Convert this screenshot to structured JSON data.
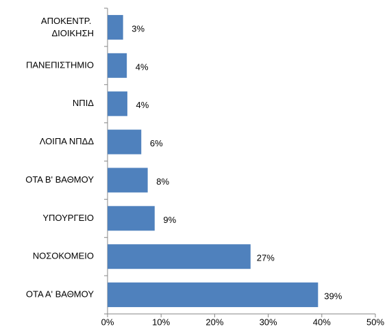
{
  "chart_data": {
    "type": "bar",
    "orientation": "horizontal",
    "categories": [
      "ΑΠΟΚΕΝΤΡ. ΔΙΟΙΚΗΣΗ",
      "ΠΑΝΕΠΙΣΤΗΜΙΟ",
      "ΝΠΙΔ",
      "ΛΟΙΠΑ ΝΠΔΔ",
      "ΟΤΑ Β' ΒΑΘΜΟΥ",
      "ΥΠΟΥΡΓΕΙΟ",
      "ΝΟΣΟΚΟΜΕΙΟ",
      "ΟΤΑ Α' ΒΑΘΜΟΥ"
    ],
    "values": [
      2.9,
      3.6,
      3.7,
      6.3,
      7.5,
      8.8,
      26.7,
      39.3
    ],
    "value_labels": [
      "3%",
      "4%",
      "4%",
      "6%",
      "8%",
      "9%",
      "27%",
      "39%"
    ],
    "color": "#4f81bd",
    "xlim": [
      0,
      50
    ],
    "xticks": [
      {
        "value": 0,
        "label": "0%"
      },
      {
        "value": 10,
        "label": "10%"
      },
      {
        "value": 20,
        "label": "20%"
      },
      {
        "value": 30,
        "label": "30%"
      },
      {
        "value": 40,
        "label": "40%"
      },
      {
        "value": 50,
        "label": "50%"
      }
    ],
    "grid": false
  }
}
